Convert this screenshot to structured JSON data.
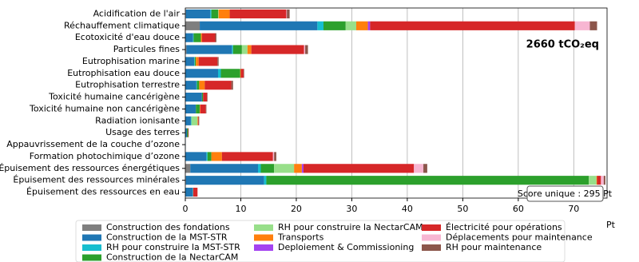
{
  "chart_data": {
    "type": "barh_stacked",
    "categories": [
      "Acidification de l'air",
      "Réchauffement climatique",
      "Ecotoxicité d'eau douce",
      "Particules fines",
      "Eutrophisation marine",
      "Eutrophisation eau douce",
      "Eutrophisation terrestre",
      "Toxicité humaine cancérigène",
      "Toxicité humaine non cancérigène",
      "Radiation ionisante",
      "Usage des terres",
      "Appauvrissement de la couche d’ozone",
      "Formation photochimique d’ozone",
      "Épuisement des ressources énergétiques",
      "Épuisement des ressources minérales",
      "Épuisement des ressources en eau"
    ],
    "series": [
      {
        "name": "Construction des fondations",
        "color": "#7f7f7f",
        "values": [
          0.1,
          2.6,
          0,
          0.2,
          0,
          0,
          0,
          0,
          0,
          0,
          0,
          0,
          0,
          0.9,
          0.1,
          0
        ]
      },
      {
        "name": "Construction de la MST-STR",
        "color": "#1f77b4",
        "values": [
          4.4,
          21.2,
          1.4,
          8.2,
          1.6,
          5.9,
          2.0,
          3.0,
          1.9,
          1.0,
          0.3,
          0.05,
          3.8,
          12.2,
          14.1,
          1.3
        ]
      },
      {
        "name": "RH pour construire la MST-STR",
        "color": "#17becf",
        "values": [
          0.2,
          1.1,
          0.1,
          0.2,
          0.1,
          0.5,
          0.1,
          0,
          0,
          0.1,
          0,
          0,
          0.2,
          0.5,
          0.4,
          0.1
        ]
      },
      {
        "name": "Construction de la NectarCAM",
        "color": "#2ca02c",
        "values": [
          1.2,
          4.0,
          1.3,
          1.6,
          0.2,
          3.5,
          0.4,
          0.2,
          0.7,
          0,
          0.2,
          0,
          0.7,
          2.4,
          58.1,
          0
        ]
      },
      {
        "name": "RH pour construire la NectarCAM",
        "color": "#98df8a",
        "values": [
          0.1,
          1.9,
          0,
          1.0,
          0,
          0,
          0,
          0,
          0,
          1.1,
          0,
          0,
          0,
          3.6,
          1.4,
          0
        ]
      },
      {
        "name": "Transports",
        "color": "#ff7f0e",
        "values": [
          2.0,
          2.1,
          0.2,
          0.7,
          0.5,
          0.1,
          1.0,
          0,
          0.1,
          0.1,
          0,
          0,
          1.9,
          1.4,
          0.1,
          0
        ]
      },
      {
        "name": "Deploiement & Commissioning",
        "color": "#a442f0",
        "values": [
          0,
          0.4,
          0,
          0,
          0,
          0,
          0,
          0,
          0,
          0,
          0,
          0,
          0,
          0.3,
          0,
          0
        ]
      },
      {
        "name": "Électricité pour opérations",
        "color": "#d62728",
        "values": [
          10.2,
          36.9,
          2.4,
          9.5,
          3.4,
          0.5,
          4.8,
          0.7,
          1.0,
          0.1,
          0.1,
          0,
          9.2,
          19.9,
          0.7,
          0.8
        ]
      },
      {
        "name": "Déplacements pour maintenance",
        "color": "#f7b6d2",
        "values": [
          0.1,
          2.7,
          0,
          0.2,
          0,
          0,
          0,
          0,
          0,
          0,
          0,
          0,
          0.2,
          1.7,
          0.5,
          0
        ]
      },
      {
        "name": "RH pour maintenance",
        "color": "#8c564b",
        "values": [
          0.5,
          1.3,
          0.2,
          0.5,
          0.2,
          0.1,
          0.3,
          0.1,
          0.1,
          0.1,
          0,
          0,
          0.4,
          0.7,
          0.3,
          0
        ]
      }
    ],
    "xlim": [
      0,
      76
    ],
    "xticks": [
      0,
      10,
      20,
      30,
      40,
      50,
      60,
      70
    ],
    "xlabel": "Pt",
    "grid": true,
    "annotations": [
      "2660 tCO₂eq",
      "Score unique : 295 Pt"
    ],
    "legend": "bottom"
  }
}
